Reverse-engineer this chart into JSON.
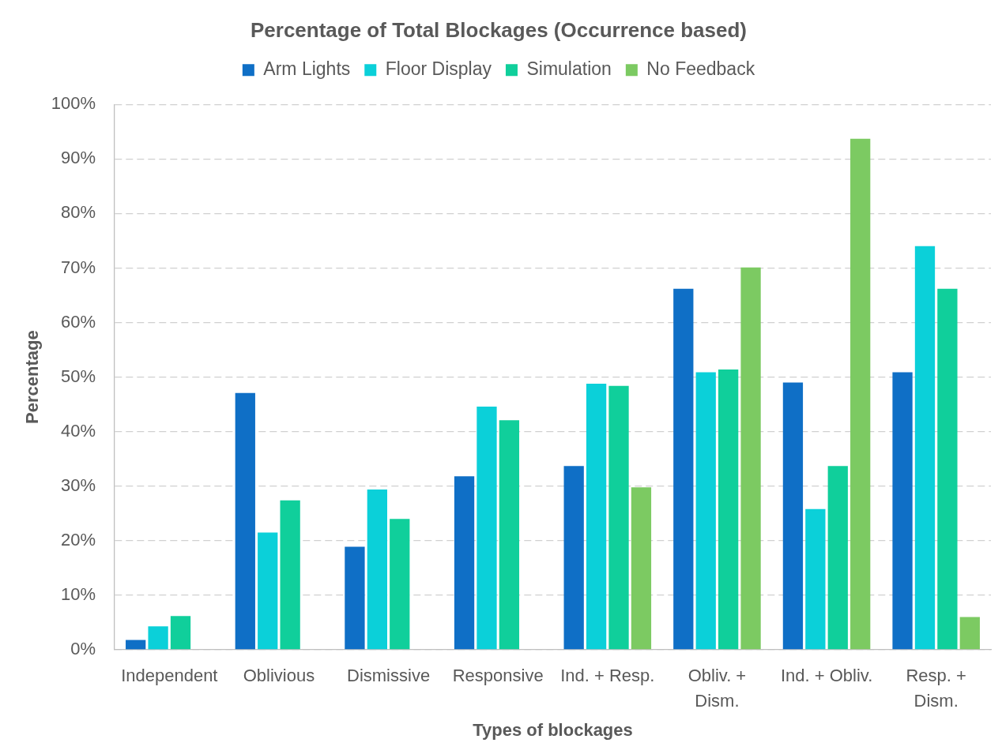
{
  "chart_data": {
    "type": "bar",
    "title": "Percentage of Total Blockages (Occurrence based)",
    "xlabel": "Types of blockages",
    "ylabel": "Percentage",
    "categories": [
      "Independent",
      "Oblivious",
      "Dismissive",
      "Responsive",
      "Ind. + Resp.",
      "Obliv. + Dism.",
      "Ind. + Obliv.",
      "Resp. + Dism."
    ],
    "series": [
      {
        "name": "Arm Lights",
        "color": "#0f6fc6",
        "values": [
          1.8,
          47.1,
          18.9,
          31.8,
          33.7,
          66.2,
          49.0,
          50.9
        ]
      },
      {
        "name": "Floor Display",
        "color": "#0bd0d9",
        "values": [
          4.3,
          21.5,
          29.4,
          44.6,
          48.8,
          50.9,
          25.8,
          74.0
        ]
      },
      {
        "name": "Simulation",
        "color": "#10cf9b",
        "values": [
          6.2,
          27.4,
          24.0,
          42.1,
          48.4,
          51.4,
          33.7,
          66.2
        ]
      },
      {
        "name": "No Feedback",
        "color": "#7cca62",
        "values": [
          null,
          null,
          null,
          null,
          29.8,
          70.1,
          93.7,
          6.0
        ]
      }
    ],
    "ylim": [
      0,
      100
    ],
    "yticks": [
      {
        "value": 0,
        "label": "0%"
      },
      {
        "value": 10,
        "label": "10%"
      },
      {
        "value": 20,
        "label": "20%"
      },
      {
        "value": 30,
        "label": "30%"
      },
      {
        "value": 40,
        "label": "40%"
      },
      {
        "value": 50,
        "label": "50%"
      },
      {
        "value": 60,
        "label": "60%"
      },
      {
        "value": 70,
        "label": "70%"
      },
      {
        "value": 80,
        "label": "80%"
      },
      {
        "value": 90,
        "label": "90%"
      },
      {
        "value": 100,
        "label": "100%"
      }
    ],
    "grid": "y",
    "legend": "top"
  }
}
